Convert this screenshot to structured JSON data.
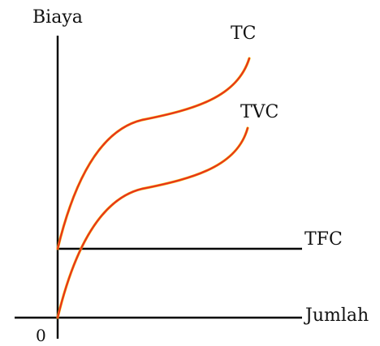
{
  "diagram": {
    "y_axis_label": "Biaya",
    "x_axis_label": "Jumlah",
    "origin_label": "0",
    "curves": [
      {
        "id": "tc",
        "label": "TC"
      },
      {
        "id": "tvc",
        "label": "TVC"
      },
      {
        "id": "tfc",
        "label": "TFC"
      }
    ],
    "colors": {
      "axis": "#000000",
      "curve_red": "#e8321e",
      "curve_yellow": "#f2c200",
      "text": "#111111"
    }
  }
}
